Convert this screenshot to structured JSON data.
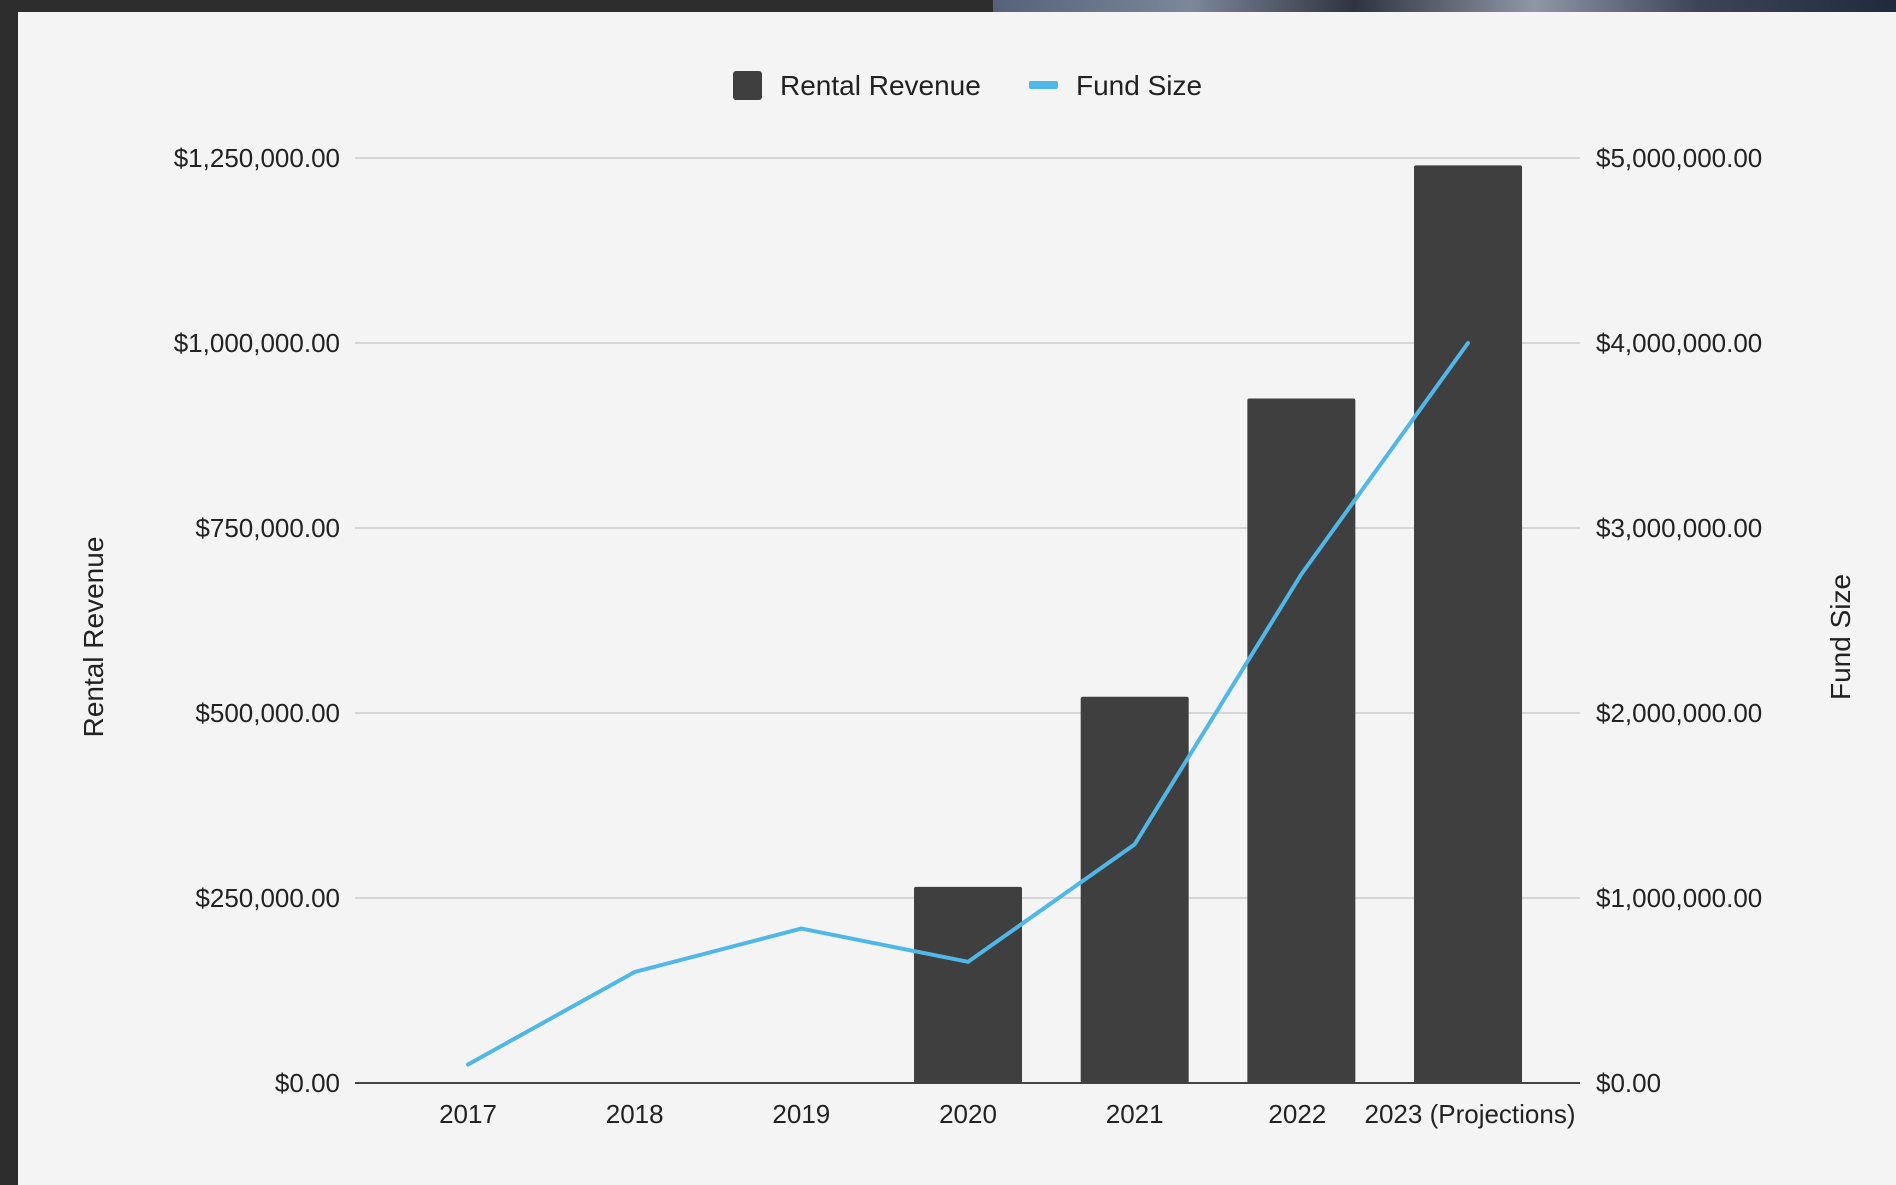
{
  "colors": {
    "rental_revenue": "#3f3f3f",
    "fund_size": "#4fb8e8",
    "gridline": "#cccccc",
    "background": "#f4f4f4"
  },
  "chart_data": {
    "type": "bar",
    "combo": "bar + line (dual axis)",
    "title": "",
    "categories": [
      "2017",
      "2018",
      "2019",
      "2020",
      "2021",
      "2022",
      "2023 (Projections)"
    ],
    "series": [
      {
        "name": "Rental Revenue",
        "type": "bar",
        "axis": "left",
        "color": "#3f3f3f",
        "values": [
          0,
          0,
          0,
          265000,
          522000,
          925000,
          1240000
        ]
      },
      {
        "name": "Fund Size",
        "type": "line",
        "axis": "right",
        "color": "#4fb8e8",
        "values": [
          100000,
          600000,
          835000,
          655000,
          1290000,
          2750000,
          4000000
        ]
      }
    ],
    "ylabel": "Rental Revenue",
    "y2label": "Fund Size",
    "ylim": [
      0,
      1250000
    ],
    "y2lim": [
      0,
      5000000
    ],
    "yticks": [
      "$0.00",
      "$250,000.00",
      "$500,000.00",
      "$750,000.00",
      "$1,000,000.00",
      "$1,250,000.00"
    ],
    "y2ticks": [
      "$0.00",
      "$1,000,000.00",
      "$2,000,000.00",
      "$3,000,000.00",
      "$4,000,000.00",
      "$5,000,000.00"
    ],
    "grid": true,
    "legend": "top-center"
  }
}
